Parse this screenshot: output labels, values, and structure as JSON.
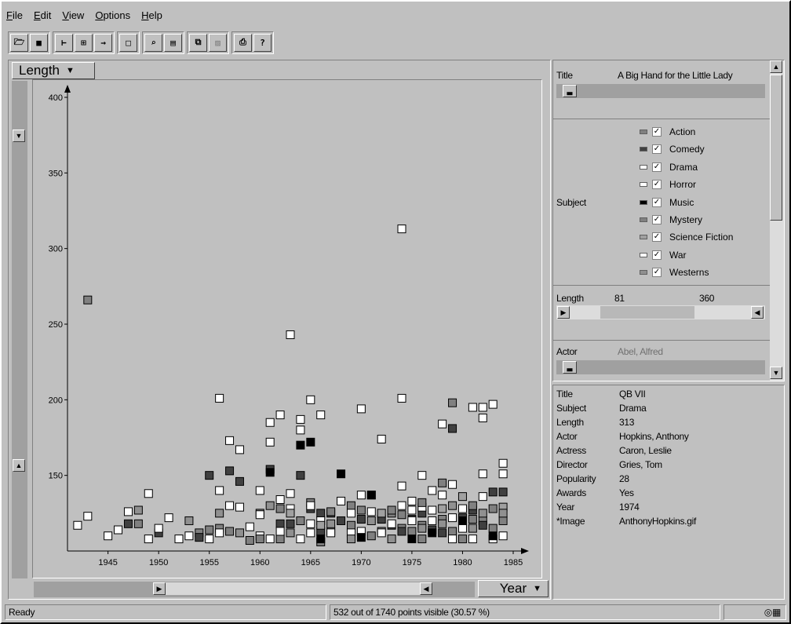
{
  "menu": [
    "File",
    "Edit",
    "View",
    "Options",
    "Help"
  ],
  "toolbar": {
    "groups": [
      [
        "open-icon",
        "save-icon"
      ],
      [
        "ruler-icon",
        "tree-icon",
        "export-icon"
      ],
      [
        "select-icon"
      ],
      [
        "zoom-icon",
        "detail-icon"
      ],
      [
        "copy-icon",
        "filter-icon"
      ],
      [
        "print-icon",
        "help-icon"
      ]
    ]
  },
  "plot": {
    "y_axis_label": "Length",
    "x_axis_label": "Year",
    "y_ticks": [
      "400",
      "350",
      "300",
      "250",
      "200",
      "150"
    ],
    "x_ticks": [
      "1945",
      "1950",
      "1955",
      "1960",
      "1965",
      "1970",
      "1975",
      "1980",
      "1985"
    ]
  },
  "chart_data": {
    "type": "scatter",
    "xlabel": "Year",
    "ylabel": "Length",
    "xlim": [
      1941,
      1985
    ],
    "ylim": [
      100,
      400
    ],
    "series": [
      {
        "name": "Action",
        "color": "#808080",
        "points": [
          [
            1943,
            266
          ],
          [
            1956,
            115
          ],
          [
            1957,
            113
          ],
          [
            1960,
            125
          ],
          [
            1962,
            108
          ],
          [
            1966,
            106
          ],
          [
            1969,
            117
          ],
          [
            1973,
            125
          ],
          [
            1975,
            113
          ],
          [
            1976,
            108
          ],
          [
            1979,
            113
          ],
          [
            1980,
            108
          ],
          [
            1982,
            120
          ],
          [
            1983,
            115
          ],
          [
            1984,
            120
          ],
          [
            1976,
            117
          ],
          [
            1964,
            120
          ],
          [
            1948,
            118
          ],
          [
            1955,
            114
          ],
          [
            1959,
            107
          ],
          [
            1967,
            113
          ],
          [
            1971,
            110
          ],
          [
            1978,
            121
          ],
          [
            1981,
            121
          ],
          [
            1972,
            113
          ],
          [
            1974,
            115
          ],
          [
            1954,
            112
          ]
        ]
      },
      {
        "name": "Comedy",
        "color": "#404040",
        "points": [
          [
            1958,
            146
          ],
          [
            1964,
            150
          ],
          [
            1979,
            181
          ],
          [
            1947,
            118
          ],
          [
            1950,
            112
          ],
          [
            1954,
            109
          ],
          [
            1955,
            150
          ],
          [
            1957,
            153
          ],
          [
            1961,
            154
          ],
          [
            1962,
            118
          ],
          [
            1963,
            118
          ],
          [
            1965,
            128
          ],
          [
            1966,
            125
          ],
          [
            1968,
            120
          ],
          [
            1970,
            121
          ],
          [
            1972,
            121
          ],
          [
            1973,
            117
          ],
          [
            1975,
            121
          ],
          [
            1977,
            114
          ],
          [
            1978,
            112
          ],
          [
            1980,
            122
          ],
          [
            1982,
            117
          ],
          [
            1983,
            139
          ],
          [
            1984,
            139
          ],
          [
            1971,
            137
          ],
          [
            1976,
            125
          ],
          [
            1981,
            127
          ],
          [
            1966,
            113
          ],
          [
            1967,
            125
          ],
          [
            1974,
            113
          ]
        ]
      },
      {
        "name": "Drama",
        "color": "#ffffff",
        "points": [
          [
            1974,
            313
          ],
          [
            1963,
            243
          ],
          [
            1956,
            201
          ],
          [
            1962,
            190
          ],
          [
            1964,
            187
          ],
          [
            1965,
            200
          ],
          [
            1966,
            190
          ],
          [
            1970,
            194
          ],
          [
            1974,
            201
          ],
          [
            1978,
            184
          ],
          [
            1981,
            195
          ],
          [
            1982,
            195
          ],
          [
            1983,
            197
          ],
          [
            1957,
            173
          ],
          [
            1958,
            167
          ],
          [
            1961,
            185
          ],
          [
            1961,
            172
          ],
          [
            1964,
            180
          ],
          [
            1972,
            174
          ],
          [
            1982,
            188
          ],
          [
            1984,
            158
          ],
          [
            1984,
            151
          ],
          [
            1979,
            144
          ],
          [
            1982,
            151
          ],
          [
            1976,
            150
          ],
          [
            1974,
            143
          ],
          [
            1962,
            134
          ],
          [
            1963,
            138
          ],
          [
            1960,
            124
          ],
          [
            1949,
            138
          ],
          [
            1951,
            122
          ],
          [
            1953,
            110
          ],
          [
            1942,
            117
          ],
          [
            1943,
            123
          ],
          [
            1945,
            110
          ],
          [
            1946,
            114
          ],
          [
            1947,
            126
          ],
          [
            1949,
            108
          ],
          [
            1950,
            115
          ],
          [
            1955,
            108
          ],
          [
            1958,
            129
          ],
          [
            1960,
            110
          ],
          [
            1961,
            108
          ],
          [
            1963,
            128
          ],
          [
            1965,
            118
          ],
          [
            1966,
            120
          ],
          [
            1967,
            112
          ],
          [
            1968,
            133
          ],
          [
            1969,
            112
          ],
          [
            1970,
            137
          ],
          [
            1972,
            112
          ],
          [
            1974,
            130
          ],
          [
            1975,
            120
          ],
          [
            1976,
            129
          ],
          [
            1977,
            140
          ],
          [
            1978,
            137
          ],
          [
            1980,
            128
          ],
          [
            1981,
            108
          ],
          [
            1983,
            108
          ],
          [
            1984,
            110
          ],
          [
            1971,
            126
          ],
          [
            1973,
            118
          ],
          [
            1956,
            112
          ],
          [
            1959,
            116
          ],
          [
            1964,
            108
          ],
          [
            1970,
            113
          ],
          [
            1980,
            115
          ],
          [
            1977,
            120
          ],
          [
            1962,
            113
          ]
        ]
      },
      {
        "name": "Horror",
        "color": "#ffffff",
        "points": [
          [
            1952,
            108
          ],
          [
            1957,
            130
          ],
          [
            1965,
            112
          ],
          [
            1975,
            133
          ],
          [
            1979,
            108
          ],
          [
            1982,
            136
          ]
        ]
      },
      {
        "name": "Music",
        "color": "#000000",
        "points": [
          [
            1964,
            170
          ],
          [
            1965,
            172
          ],
          [
            1968,
            151
          ],
          [
            1971,
            137
          ],
          [
            1975,
            108
          ],
          [
            1980,
            120
          ],
          [
            1961,
            152
          ],
          [
            1983,
            110
          ],
          [
            1966,
            108
          ],
          [
            1970,
            109
          ],
          [
            1977,
            112
          ]
        ]
      },
      {
        "name": "Mystery",
        "color": "#808080",
        "points": [
          [
            1979,
            198
          ],
          [
            1967,
            126
          ],
          [
            1969,
            130
          ],
          [
            1973,
            127
          ],
          [
            1976,
            132
          ],
          [
            1978,
            145
          ],
          [
            1981,
            130
          ],
          [
            1983,
            128
          ],
          [
            1960,
            108
          ],
          [
            1962,
            128
          ],
          [
            1965,
            132
          ],
          [
            1970,
            127
          ],
          [
            1974,
            124
          ]
        ]
      },
      {
        "name": "Science Fiction",
        "color": "#a0a0a0",
        "points": [
          [
            1963,
            125
          ],
          [
            1966,
            117
          ],
          [
            1972,
            125
          ],
          [
            1980,
            136
          ],
          [
            1984,
            129
          ],
          [
            1978,
            128
          ]
        ]
      },
      {
        "name": "War",
        "color": "#ffffff",
        "points": [
          [
            1956,
            140
          ],
          [
            1960,
            140
          ],
          [
            1965,
            130
          ],
          [
            1969,
            125
          ],
          [
            1975,
            127
          ],
          [
            1977,
            127
          ],
          [
            1979,
            122
          ]
        ]
      },
      {
        "name": "Westerns",
        "color": "#909090",
        "points": [
          [
            1948,
            127
          ],
          [
            1953,
            120
          ],
          [
            1956,
            125
          ],
          [
            1958,
            112
          ],
          [
            1961,
            130
          ],
          [
            1963,
            112
          ],
          [
            1967,
            118
          ],
          [
            1969,
            108
          ],
          [
            1971,
            120
          ],
          [
            1976,
            115
          ],
          [
            1978,
            118
          ],
          [
            1982,
            125
          ],
          [
            1984,
            125
          ],
          [
            1973,
            108
          ],
          [
            1979,
            130
          ],
          [
            1981,
            115
          ]
        ]
      }
    ]
  },
  "filters": {
    "title_label": "Title",
    "title_value": "A Big Hand for the Little Lady",
    "subject_label": "Subject",
    "subjects": [
      {
        "name": "Action",
        "swatch": "#808080",
        "checked": "✓"
      },
      {
        "name": "Comedy",
        "swatch": "#404040",
        "checked": "✓"
      },
      {
        "name": "Drama",
        "swatch": "#ffffff",
        "checked": "✓"
      },
      {
        "name": "Horror",
        "swatch": "#ffffff",
        "checked": "✓"
      },
      {
        "name": "Music",
        "swatch": "#000000",
        "checked": "✓"
      },
      {
        "name": "Mystery",
        "swatch": "#808080",
        "checked": "✓"
      },
      {
        "name": "Science Fiction",
        "swatch": "#a0a0a0",
        "checked": "✓"
      },
      {
        "name": "War",
        "swatch": "#ffffff",
        "checked": "✓"
      },
      {
        "name": "Westerns",
        "swatch": "#909090",
        "checked": "✓"
      }
    ],
    "length_label": "Length",
    "length_min": "81",
    "length_max": "360",
    "actor_label": "Actor",
    "actor_value": "Abel, Alfred"
  },
  "details": [
    {
      "key": "Title",
      "value": "QB VII"
    },
    {
      "key": "Subject",
      "value": "Drama"
    },
    {
      "key": "Length",
      "value": "313"
    },
    {
      "key": "Actor",
      "value": "Hopkins, Anthony"
    },
    {
      "key": "Actress",
      "value": "Caron, Leslie"
    },
    {
      "key": "Director",
      "value": "Gries, Tom"
    },
    {
      "key": "Popularity",
      "value": "28"
    },
    {
      "key": "Awards",
      "value": "Yes"
    },
    {
      "key": "Year",
      "value": "1974"
    },
    {
      "key": "*Image",
      "value": "AnthonyHopkins.gif"
    }
  ],
  "status": {
    "ready": "Ready",
    "points": "532 out of 1740 points visible (30.57 %)"
  }
}
